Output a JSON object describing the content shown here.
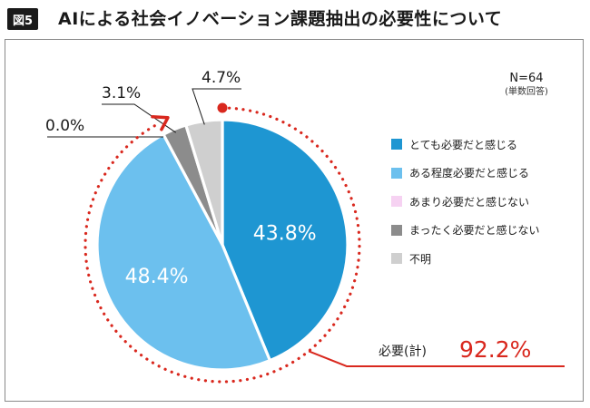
{
  "figure": {
    "badge": "図5",
    "title": "AIによる社会イノベーション課題抽出の必要性について"
  },
  "sample": {
    "n_label": "N=64",
    "n_note": "(単数回答)"
  },
  "summary": {
    "label": "必要(計)",
    "value": "92.2%"
  },
  "colors": {
    "accent": "#d9281e"
  },
  "chart_data": {
    "type": "pie",
    "categories": [
      "とても必要だと感じる",
      "ある程度必要だと感じる",
      "あまり必要だと感じない",
      "まったく必要だと感じない",
      "不明"
    ],
    "values": [
      43.8,
      48.4,
      0.0,
      3.1,
      4.7
    ],
    "labels": [
      "43.8%",
      "48.4%",
      "0.0%",
      "3.1%",
      "4.7%"
    ],
    "colors": [
      "#1e96d2",
      "#6cc0ee",
      "#f6d2f2",
      "#8c8c8c",
      "#cfcfcf"
    ],
    "start": "12 o'clock",
    "direction": "clockwise",
    "legend_position": "right"
  }
}
